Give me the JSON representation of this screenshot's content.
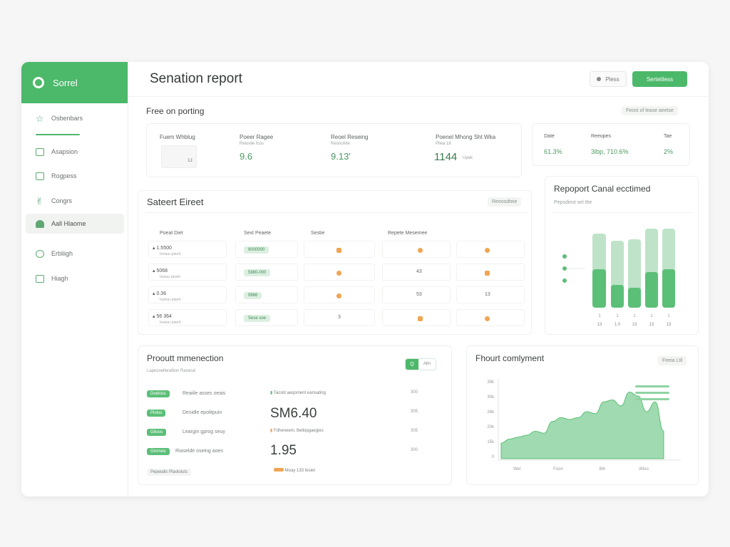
{
  "sidebar": {
    "brand": "Sorrel",
    "items": [
      {
        "label": "Osbenbars",
        "icon": "star-icon"
      },
      {
        "label": "Asapsion",
        "icon": "lock-icon"
      },
      {
        "label": "Rogpess",
        "icon": "folder-icon"
      },
      {
        "label": "Congrs",
        "icon": "hand-icon"
      },
      {
        "label": "Aall Hlaome",
        "icon": "user-icon"
      },
      {
        "label": "Erbliigh",
        "icon": "circle-icon"
      },
      {
        "label": "Hiagh",
        "icon": "file-icon"
      }
    ]
  },
  "header": {
    "title": "Senation report",
    "ghost_button": "Pless",
    "primary_button": "Sertetiless"
  },
  "free_reporting": {
    "title": "Free on porting",
    "tag": "Feost of lease aeetse",
    "stats": [
      {
        "label": "Fuem Whblug",
        "sub": "",
        "value": "LI"
      },
      {
        "label": "Poeer Ragee",
        "sub": "Reiuvile fcos",
        "value": "9.6"
      },
      {
        "label": "Reoel Reseing",
        "sub": "Reonolvle",
        "value": "9.13'"
      },
      {
        "label": "Poenel Mhong Sht Wka",
        "sub": "Pliea 18",
        "value": "1144",
        "unit": "Upek"
      }
    ],
    "mini": [
      {
        "label": "Date",
        "value": "61.3%"
      },
      {
        "label": "Reeopes",
        "value": "3lbp, 710.6%"
      },
      {
        "label": "Tae",
        "value": "2%"
      }
    ]
  },
  "table": {
    "title": "Sateert Eireet",
    "tag": "Reeosdteie",
    "columns": [
      "Poeat Diet",
      "Sext Peaete",
      "Sestie",
      "Repete Mesemee"
    ],
    "rows": [
      {
        "name": "1.5500",
        "sub": "Ieoiuu piseh",
        "pill": "9000000",
        "c3": "sq",
        "c4": "ci",
        "c5": "ci"
      },
      {
        "name": "5068",
        "sub": "Issiuu piseh",
        "pill": "5880-000",
        "c3": "ci",
        "c4": "43",
        "c5": "sq"
      },
      {
        "name": "0.36",
        "sub": "Ioeiuu piseh",
        "pill": "9966",
        "c3": "ci",
        "c4": "53",
        "c5": "13"
      },
      {
        "name": "56 364",
        "sub": "Ioeiuu piseh",
        "pill": "Sese soe",
        "c3": "3",
        "c4": "sq",
        "c5": "ci"
      }
    ]
  },
  "report_chart": {
    "title": "Repoport Canal ecctimed",
    "subtitle": "Pepsdiest sel the",
    "x_labels": [
      "13",
      "1.0",
      "13",
      "13",
      "13"
    ],
    "tick_marks": [
      "1",
      "1",
      "1",
      "1",
      "1"
    ],
    "colors": {
      "light": "#bfe3c9",
      "dark": "#5cbf78"
    }
  },
  "product_mnemotion": {
    "title": "Prooutt mmenection",
    "subtitle": "Lapesnelleraltion Rarenal",
    "rows": [
      {
        "tag": "Doeloss",
        "text": "Reaiile asses oeais"
      },
      {
        "tag": "Piolos",
        "text": "Desidle epolitpuin"
      },
      {
        "tag": "Giloos",
        "text": "Leargin gprog seuy"
      },
      {
        "tag": "Omrnee",
        "text": "Riaselde oseing aoes"
      }
    ],
    "footer_tag": "Pepeialls Plaoloiuts",
    "mid_items": [
      {
        "text": "Tacsld aeqoment eansating"
      },
      {
        "text": "Fdheneem, Bellopgaegies"
      },
      {
        "text": "Moay 133 fesiet"
      }
    ],
    "big_values": [
      "SM6.40",
      "1.95"
    ],
    "side_nums": [
      "300",
      "305",
      "305",
      "300"
    ],
    "toggle": {
      "on": "Q",
      "off": "Alm"
    }
  },
  "product_compliment": {
    "title": "Fhourt comlyment",
    "tag": "Feeia Ltil",
    "y_labels": [
      "39k",
      "30k",
      "26k",
      "20k",
      "15k",
      "0"
    ],
    "x_labels": [
      "Wel",
      "Foon",
      "Bih",
      "Wloo"
    ],
    "chart_data": {
      "type": "area",
      "x": [
        0,
        1,
        2,
        3,
        4,
        5,
        6,
        7,
        8,
        9,
        10,
        11,
        12,
        13,
        14,
        15,
        16,
        17,
        18,
        19
      ],
      "values": [
        8,
        10,
        11,
        12,
        14,
        13,
        19,
        21,
        20,
        21,
        24,
        23,
        29,
        30,
        27,
        34,
        32,
        24,
        29,
        14
      ],
      "ylim": [
        0,
        40
      ],
      "color": "#5cbf78"
    }
  }
}
